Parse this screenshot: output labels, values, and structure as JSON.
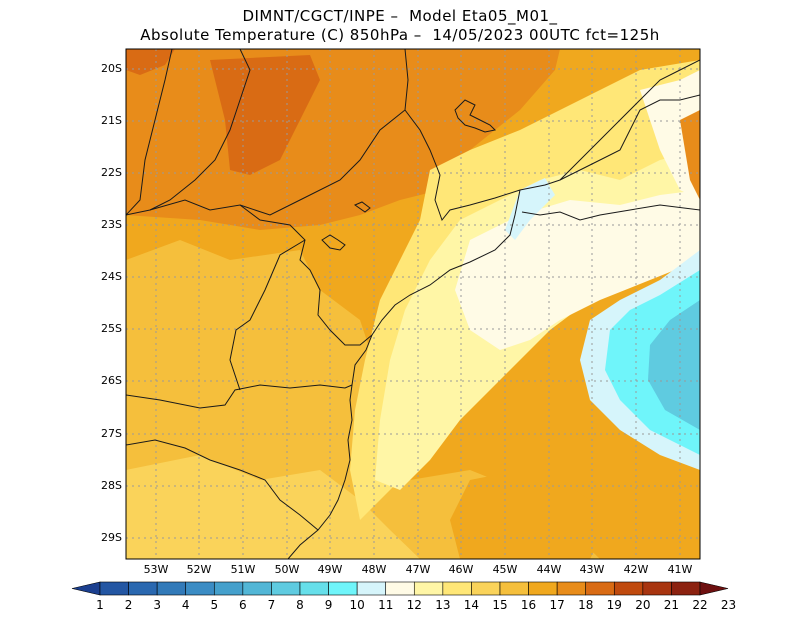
{
  "header": {
    "line1": "DIMNT/CGCT/INPE –  Model Eta05_M01_",
    "line2": "Absolute Temperature (C) 850hPa –  14/05/2023 00UTC fct=125h"
  },
  "axes": {
    "lat_labels": [
      "20S",
      "21S",
      "22S",
      "23S",
      "24S",
      "25S",
      "26S",
      "27S",
      "28S",
      "29S"
    ],
    "lon_labels": [
      "53W",
      "52W",
      "51W",
      "50W",
      "49W",
      "48W",
      "47W",
      "46W",
      "45W",
      "44W",
      "43W",
      "42W",
      "41W"
    ]
  },
  "colorbar": {
    "labels": [
      "1",
      "2",
      "3",
      "4",
      "5",
      "6",
      "7",
      "8",
      "9",
      "10",
      "11",
      "12",
      "13",
      "14",
      "15",
      "16",
      "17",
      "18",
      "19",
      "20",
      "21",
      "22",
      "23"
    ],
    "colors": [
      "#1b3f8f",
      "#2356a3",
      "#2a68b0",
      "#327ab9",
      "#3b8cc4",
      "#45a0cc",
      "#52b6d6",
      "#5fcbe0",
      "#66dfea",
      "#6ff5fa",
      "#d6f5fb",
      "#fffbe6",
      "#fff6a6",
      "#ffe777",
      "#fad35a",
      "#f5bf3c",
      "#f0a81e",
      "#e88c1a",
      "#d96b14",
      "#c04a0e",
      "#a83510",
      "#8c2210",
      "#6e1010"
    ]
  }
}
